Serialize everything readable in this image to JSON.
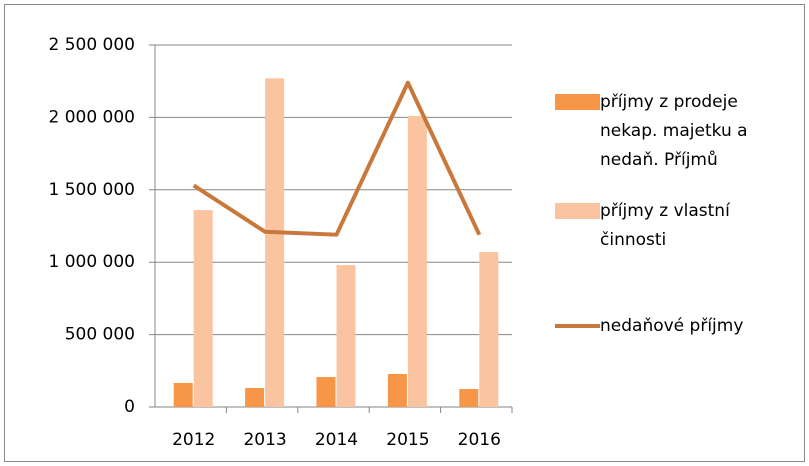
{
  "chart_data": {
    "type": "bar-line",
    "categories": [
      "2012",
      "2013",
      "2014",
      "2015",
      "2016"
    ],
    "series": [
      {
        "name": "příjmy z prodeje nekap. majetku a nedaň. Příjmů",
        "type": "bar",
        "color": "#f79646",
        "values": [
          166000,
          131000,
          207000,
          228000,
          124000
        ]
      },
      {
        "name": "příjmy z vlastní činnosti",
        "type": "bar",
        "color": "#fac4a0",
        "values": [
          1360000,
          2270000,
          980000,
          2010000,
          1070000
        ]
      },
      {
        "name": "nedaňové příjmy",
        "type": "line",
        "color": "#c8783a",
        "values": [
          1530000,
          1210000,
          1190000,
          2240000,
          1190000
        ]
      }
    ],
    "ylim": [
      0,
      2500000
    ],
    "yticks": [
      0,
      {
        "value": 500000,
        "label": "500 000"
      },
      {
        "value": 1000000,
        "label": "1 000 000"
      },
      {
        "value": 1500000,
        "label": "1 500 000"
      },
      {
        "value": 2000000,
        "label": "2 000 000"
      },
      {
        "value": 2500000,
        "label": "2 500 000"
      }
    ],
    "grid": true,
    "legend": "right"
  }
}
